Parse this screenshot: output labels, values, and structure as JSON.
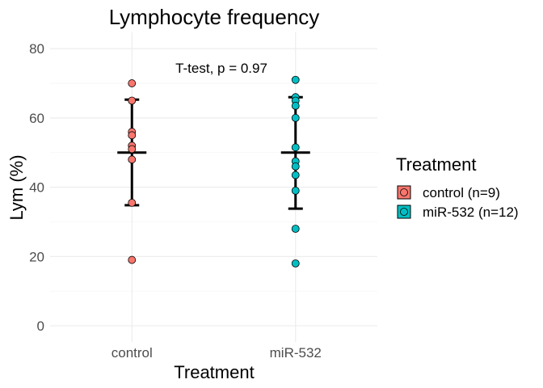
{
  "chart_data": {
    "type": "scatter",
    "title": "Lymphocyte frequency",
    "xlabel": "Treatment",
    "ylabel": "Lym (%)",
    "categories": [
      "control",
      "miR-532"
    ],
    "ylim": [
      -4,
      84
    ],
    "yticks": [
      0,
      20,
      40,
      60,
      80
    ],
    "grid": true,
    "annotation": "T-test, p = 0.97",
    "legend": {
      "title": "Treatment",
      "placement": "right",
      "entries": [
        "control (n=9)",
        "miR-532 (n=12)"
      ]
    },
    "series": [
      {
        "name": "control (n=9)",
        "category": "control",
        "color": "#F8766D",
        "values": [
          70,
          65,
          56,
          55,
          52,
          51,
          48,
          35.5,
          19
        ],
        "mean": 50,
        "sd_low": 34.8,
        "sd_high": 65.3
      },
      {
        "name": "miR-532 (n=12)",
        "category": "miR-532",
        "color": "#00BFC4",
        "values": [
          71,
          66,
          65,
          63.5,
          60,
          51.5,
          47.5,
          46,
          43.5,
          39,
          28,
          18
        ],
        "mean": 50,
        "sd_low": 33.8,
        "sd_high": 66
      }
    ]
  }
}
